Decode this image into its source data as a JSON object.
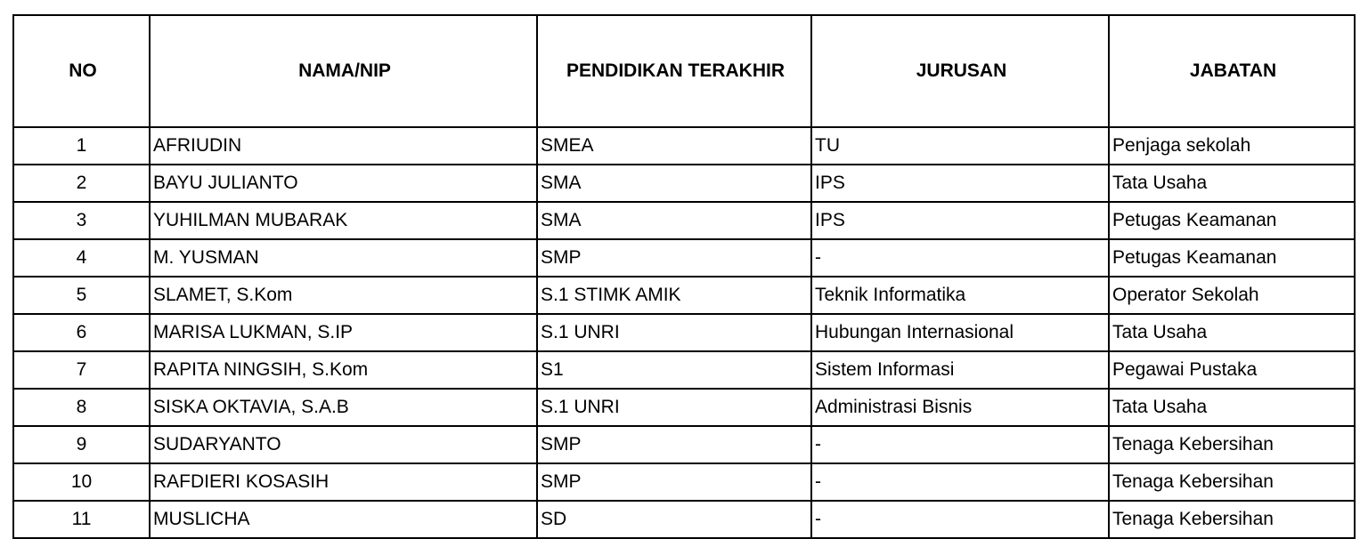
{
  "headers": [
    "NO",
    "NAMA/NIP",
    "PENDIDIKAN TERAKHIR",
    "JURUSAN",
    "JABATAN"
  ],
  "rows": [
    {
      "no": "1",
      "nama": " AFRIUDIN",
      "pendidikan": "SMEA",
      "jurusan": "TU",
      "jabatan": "Penjaga sekolah"
    },
    {
      "no": "2",
      "nama": "BAYU JULIANTO",
      "pendidikan": "SMA",
      "jurusan": "IPS",
      "jabatan": "Tata Usaha"
    },
    {
      "no": "3",
      "nama": "YUHILMAN MUBARAK",
      "pendidikan": "SMA",
      "jurusan": "IPS",
      "jabatan": "Petugas Keamanan"
    },
    {
      "no": "4",
      "nama": "M. YUSMAN",
      "pendidikan": "SMP",
      "jurusan": "-",
      "jabatan": "Petugas Keamanan"
    },
    {
      "no": "5",
      "nama": "SLAMET, S.Kom",
      "pendidikan": "S.1 STIMK AMIK",
      "jurusan": "Teknik Informatika",
      "jabatan": "Operator Sekolah"
    },
    {
      "no": "6",
      "nama": "MARISA LUKMAN, S.IP",
      "pendidikan": "S.1 UNRI",
      "jurusan": "Hubungan Internasional",
      "jabatan": "Tata Usaha"
    },
    {
      "no": "7",
      "nama": "RAPITA NINGSIH, S.Kom",
      "pendidikan": "S1",
      "jurusan": "Sistem Informasi",
      "jabatan": "Pegawai Pustaka"
    },
    {
      "no": "8",
      "nama": "SISKA OKTAVIA, S.A.B",
      "pendidikan": "S.1 UNRI",
      "jurusan": "Administrasi Bisnis",
      "jabatan": "Tata Usaha"
    },
    {
      "no": "9",
      "nama": "SUDARYANTO",
      "pendidikan": "SMP",
      "jurusan": "-",
      "jabatan": "Tenaga Kebersihan"
    },
    {
      "no": "10",
      "nama": "RAFDIERI KOSASIH",
      "pendidikan": "SMP",
      "jurusan": "-",
      "jabatan": "Tenaga Kebersihan"
    },
    {
      "no": "11",
      "nama": "MUSLICHA",
      "pendidikan": "SD",
      "jurusan": "-",
      "jabatan": "Tenaga Kebersihan"
    }
  ]
}
